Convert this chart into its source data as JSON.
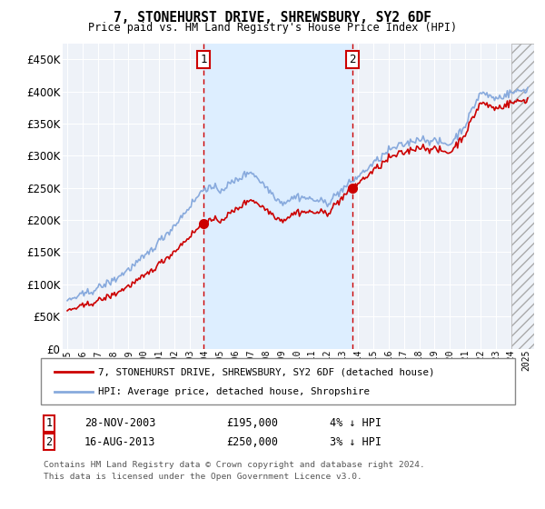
{
  "title": "7, STONEHURST DRIVE, SHREWSBURY, SY2 6DF",
  "subtitle": "Price paid vs. HM Land Registry's House Price Index (HPI)",
  "legend_line1": "7, STONEHURST DRIVE, SHREWSBURY, SY2 6DF (detached house)",
  "legend_line2": "HPI: Average price, detached house, Shropshire",
  "annotation1_label": "1",
  "annotation1_date": "28-NOV-2003",
  "annotation1_price": "£195,000",
  "annotation1_hpi": "4% ↓ HPI",
  "annotation2_label": "2",
  "annotation2_date": "16-AUG-2013",
  "annotation2_price": "£250,000",
  "annotation2_hpi": "3% ↓ HPI",
  "footer1": "Contains HM Land Registry data © Crown copyright and database right 2024.",
  "footer2": "This data is licensed under the Open Government Licence v3.0.",
  "red_line_color": "#cc0000",
  "blue_line_color": "#88aadd",
  "highlight_color": "#ddeeff",
  "bg_color": "#ffffff",
  "plot_bg_color": "#eef2f8",
  "grid_color": "#ffffff",
  "ylim": [
    0,
    475000
  ],
  "yticks": [
    0,
    50000,
    100000,
    150000,
    200000,
    250000,
    300000,
    350000,
    400000,
    450000
  ],
  "sale1_x": 2003.91,
  "sale1_y": 195000,
  "sale2_x": 2013.62,
  "sale2_y": 250000,
  "hpi_at_sale1": 203000,
  "hpi_at_sale2": 258000,
  "xmin": 1994.7,
  "xmax": 2025.5
}
